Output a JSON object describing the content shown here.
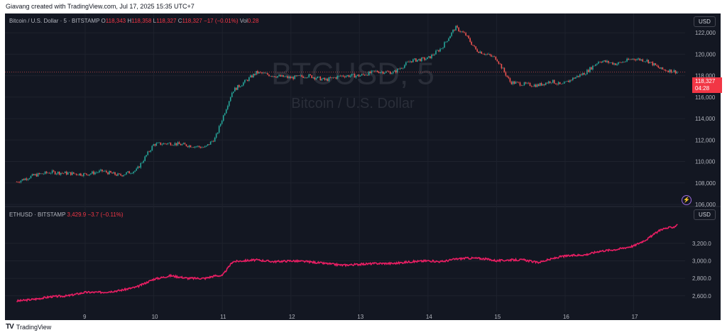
{
  "caption": "Giavang created with TradingView.com, Jul 17, 2025 15:35 UTC+7",
  "footer": {
    "logo": "TV",
    "brand": "TradingView"
  },
  "panes": {
    "top": {
      "legend": {
        "prefix": "Bitcoin / U.S. Dollar · 5 · BITSTAMP",
        "o_label": "O",
        "o": "118,343",
        "h_label": "H",
        "h": "118,358",
        "l_label": "L",
        "l": "118,327",
        "c_label": "C",
        "c": "118,327",
        "chg": "−17 (−0.01%)",
        "vol_label": "Vol",
        "vol": "0.28"
      },
      "currency": "USD",
      "price_tag": "118,327",
      "timer": "04:28",
      "watermark": "BTCUSD, 5",
      "watermark_sub": "Bitcoin / U.S. Dollar",
      "alert_icon": "lightning-alert-icon"
    },
    "bottom": {
      "legend": {
        "prefix": "ETHUSD · BITSTAMP",
        "value": "3,429.9",
        "chg": "−3.7 (−0.11%)"
      },
      "currency": "USD"
    }
  },
  "colors": {
    "background": "#131722",
    "up": "#26a69a",
    "down": "#ef5350",
    "eth_line": "#e91e63",
    "grid": "#1e222d",
    "text": "#b2b5be"
  },
  "chart_data": [
    {
      "type": "candlestick",
      "title": "BTCUSD, 5",
      "ylabel": "USD",
      "ylim": [
        105800,
        123800
      ],
      "yticks": [
        "106,000",
        "108,000",
        "110,000",
        "112,000",
        "114,000",
        "116,000",
        "118,000",
        "120,000",
        "122,000"
      ],
      "xticks": [
        "9",
        "10",
        "11",
        "12",
        "13",
        "14",
        "15",
        "16",
        "17"
      ],
      "x": [
        8.0,
        8.25,
        8.5,
        8.75,
        9.0,
        9.25,
        9.5,
        9.75,
        10.0,
        10.25,
        10.5,
        10.75,
        10.9,
        11.0,
        11.15,
        11.3,
        11.5,
        11.75,
        12.0,
        12.25,
        12.5,
        12.75,
        13.0,
        13.25,
        13.5,
        13.75,
        14.0,
        14.2,
        14.4,
        14.55,
        14.7,
        14.85,
        15.0,
        15.2,
        15.4,
        15.6,
        15.8,
        15.95,
        16.1,
        16.3,
        16.5,
        16.75,
        17.0,
        17.2,
        17.4,
        17.6,
        17.65
      ],
      "values": [
        108100,
        108700,
        109000,
        108900,
        108800,
        109100,
        108700,
        109200,
        111600,
        111700,
        111500,
        111300,
        112200,
        114000,
        116600,
        117300,
        118300,
        118000,
        117800,
        118000,
        117600,
        118000,
        118000,
        118400,
        118300,
        119400,
        119600,
        120600,
        122500,
        121800,
        120400,
        120000,
        119600,
        117400,
        117200,
        117100,
        117500,
        117100,
        117700,
        118300,
        119400,
        119100,
        119600,
        119400,
        118600,
        118400,
        118327
      ]
    },
    {
      "type": "line",
      "title": "ETHUSD",
      "ylabel": "USD",
      "ylim": [
        2420,
        3620
      ],
      "yticks": [
        "2,600.0",
        "2,800.0",
        "3,000.0",
        "3,200.0"
      ],
      "xticks": [
        "9",
        "10",
        "11",
        "12",
        "13",
        "14",
        "15",
        "16",
        "17"
      ],
      "x": [
        8.0,
        8.25,
        8.5,
        8.75,
        9.0,
        9.25,
        9.5,
        9.75,
        10.0,
        10.25,
        10.5,
        10.75,
        10.9,
        11.0,
        11.15,
        11.3,
        11.5,
        11.75,
        12.0,
        12.25,
        12.5,
        12.75,
        13.0,
        13.25,
        13.5,
        13.75,
        14.0,
        14.2,
        14.4,
        14.55,
        14.7,
        14.85,
        15.0,
        15.2,
        15.4,
        15.6,
        15.8,
        15.95,
        16.1,
        16.3,
        16.5,
        16.75,
        17.0,
        17.2,
        17.4,
        17.6,
        17.65
      ],
      "values": [
        2540,
        2560,
        2590,
        2600,
        2640,
        2640,
        2660,
        2700,
        2790,
        2830,
        2800,
        2800,
        2830,
        2830,
        2990,
        3000,
        3010,
        2990,
        3000,
        2990,
        2970,
        2950,
        2960,
        2970,
        2970,
        2990,
        3000,
        2990,
        3020,
        3030,
        3030,
        3020,
        3000,
        3010,
        3010,
        2980,
        3020,
        3050,
        3060,
        3070,
        3110,
        3130,
        3170,
        3250,
        3360,
        3390,
        3430
      ]
    }
  ]
}
